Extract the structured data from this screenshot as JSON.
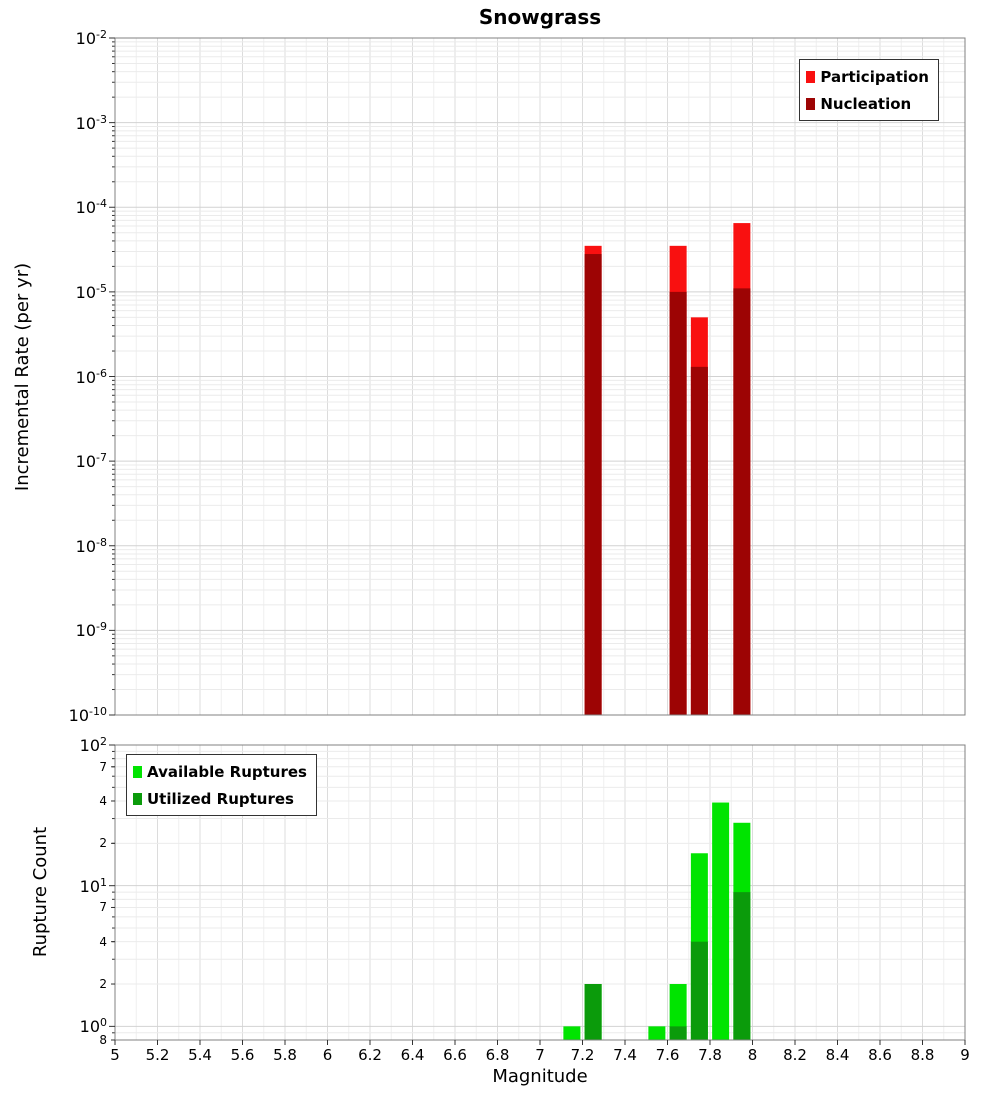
{
  "chart_data": [
    {
      "type": "bar",
      "title": "Snowgrass",
      "ylabel": "Incremental Rate (per yr)",
      "yscale": "log",
      "grid": true,
      "xlim": [
        5,
        9
      ],
      "ylim": [
        1e-10,
        0.01
      ],
      "bar_width_mag": 0.08,
      "legend_position": "top-right",
      "y_ticks": [
        {
          "v": 0.01,
          "exp": "-2"
        },
        {
          "v": 0.001,
          "exp": "-3"
        },
        {
          "v": 0.0001,
          "exp": "-4"
        },
        {
          "v": 1e-05,
          "exp": "-5"
        },
        {
          "v": 1e-06,
          "exp": "-6"
        },
        {
          "v": 1e-07,
          "exp": "-7"
        },
        {
          "v": 1e-08,
          "exp": "-8"
        },
        {
          "v": 1e-09,
          "exp": "-9"
        },
        {
          "v": 1e-10,
          "exp": "-10"
        }
      ],
      "series": [
        {
          "name": "Participation",
          "color": "#f91010",
          "points": [
            {
              "m": 7.25,
              "y": 3.5e-05
            },
            {
              "m": 7.65,
              "y": 3.5e-05
            },
            {
              "m": 7.75,
              "y": 5e-06
            },
            {
              "m": 7.95,
              "y": 6.5e-05
            }
          ]
        },
        {
          "name": "Nucleation",
          "color": "#9d0404",
          "points": [
            {
              "m": 7.25,
              "y": 2.8e-05
            },
            {
              "m": 7.65,
              "y": 1e-05
            },
            {
              "m": 7.75,
              "y": 1.3e-06
            },
            {
              "m": 7.95,
              "y": 1.1e-05
            }
          ]
        }
      ]
    },
    {
      "type": "bar",
      "ylabel": "Rupture Count",
      "xlabel": "Magnitude",
      "yscale": "log",
      "grid": true,
      "xlim": [
        5,
        9
      ],
      "ylim": [
        0.8,
        100
      ],
      "bar_width_mag": 0.08,
      "legend_position": "top-left",
      "x_ticks": [
        "5",
        "5.2",
        "5.4",
        "5.6",
        "5.8",
        "6",
        "6.2",
        "6.4",
        "6.6",
        "6.8",
        "7",
        "7.2",
        "7.4",
        "7.6",
        "7.8",
        "8",
        "8.2",
        "8.4",
        "8.6",
        "8.8",
        "9"
      ],
      "y_ticks": [
        {
          "v": 100,
          "exp": "2"
        },
        {
          "v": 70,
          "text": "7",
          "minor": true
        },
        {
          "v": 40,
          "text": "4",
          "minor": true
        },
        {
          "v": 20,
          "text": "2",
          "minor": true
        },
        {
          "v": 10,
          "exp": "1"
        },
        {
          "v": 7,
          "text": "7",
          "minor": true
        },
        {
          "v": 4,
          "text": "4",
          "minor": true
        },
        {
          "v": 2,
          "text": "2",
          "minor": true
        },
        {
          "v": 1,
          "exp": "0"
        },
        {
          "v": 0.8,
          "text": "8",
          "minor": true
        }
      ],
      "series": [
        {
          "name": "Available Ruptures",
          "color": "#00e400",
          "points": [
            {
              "m": 7.15,
              "y": 1
            },
            {
              "m": 7.25,
              "y": 2
            },
            {
              "m": 7.55,
              "y": 1
            },
            {
              "m": 7.65,
              "y": 2
            },
            {
              "m": 7.75,
              "y": 17
            },
            {
              "m": 7.85,
              "y": 39
            },
            {
              "m": 7.95,
              "y": 28
            }
          ]
        },
        {
          "name": "Utilized Ruptures",
          "color": "#0b9b0b",
          "points": [
            {
              "m": 7.25,
              "y": 2
            },
            {
              "m": 7.65,
              "y": 1
            },
            {
              "m": 7.75,
              "y": 4
            },
            {
              "m": 7.95,
              "y": 9
            }
          ]
        }
      ]
    }
  ]
}
